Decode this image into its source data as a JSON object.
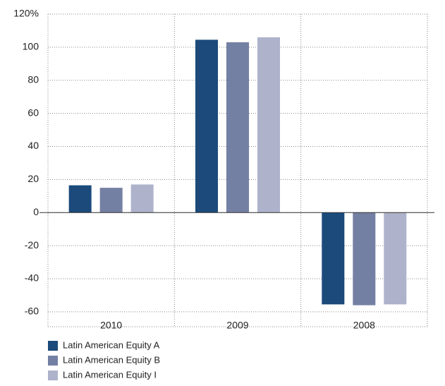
{
  "chart_data": {
    "type": "bar",
    "categories": [
      "2010",
      "2009",
      "2008"
    ],
    "series": [
      {
        "name": "Latin American Equity A",
        "color": "#1b4a7b",
        "values": [
          16.5,
          104.5,
          -55.5
        ]
      },
      {
        "name": "Latin American Equity B",
        "color": "#7480a3",
        "values": [
          15,
          103,
          -56
        ]
      },
      {
        "name": "Latin American Equity I",
        "color": "#aeb3cb",
        "values": [
          17,
          106,
          -55.5
        ]
      }
    ],
    "ylim": [
      -69,
      120
    ],
    "yticks": [
      -60,
      -40,
      -20,
      0,
      20,
      40,
      60,
      80,
      100,
      {
        "value": 120,
        "label": "120%"
      }
    ],
    "grid": true
  }
}
